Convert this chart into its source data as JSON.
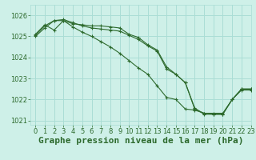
{
  "title": "Graphe pression niveau de la mer (hPa)",
  "background_color": "#cef0e8",
  "grid_color": "#aaddd5",
  "line_color": "#2d6a2d",
  "xlim": [
    -0.5,
    23
  ],
  "ylim": [
    1020.8,
    1026.5
  ],
  "yticks": [
    1021,
    1022,
    1023,
    1024,
    1025,
    1026
  ],
  "xticks": [
    0,
    1,
    2,
    3,
    4,
    5,
    6,
    7,
    8,
    9,
    10,
    11,
    12,
    13,
    14,
    15,
    16,
    17,
    18,
    19,
    20,
    21,
    22,
    23
  ],
  "series": [
    [
      1025.1,
      1025.55,
      1025.3,
      1025.75,
      1025.6,
      1025.55,
      1025.5,
      1025.5,
      1025.45,
      1025.4,
      1025.1,
      1024.95,
      1024.6,
      1024.35,
      1023.55,
      1023.2,
      1022.8,
      1021.55,
      1021.35,
      1021.35,
      1021.35,
      1022.0,
      1022.5,
      1022.5
    ],
    [
      1025.05,
      1025.5,
      1025.75,
      1025.8,
      1025.65,
      1025.5,
      1025.4,
      1025.35,
      1025.3,
      1025.25,
      1025.05,
      1024.85,
      1024.55,
      1024.3,
      1023.45,
      1023.2,
      1022.8,
      1021.6,
      1021.3,
      1021.3,
      1021.3,
      1022.0,
      1022.5,
      1022.5
    ],
    [
      1025.0,
      1025.4,
      1025.75,
      1025.75,
      1025.45,
      1025.2,
      1025.0,
      1024.75,
      1024.5,
      1024.2,
      1023.85,
      1023.5,
      1023.2,
      1022.65,
      1022.1,
      1022.0,
      1021.55,
      1021.5,
      1021.35,
      1021.3,
      1021.3,
      1022.0,
      1022.45,
      1022.45
    ]
  ],
  "title_fontsize": 8,
  "tick_fontsize": 6
}
